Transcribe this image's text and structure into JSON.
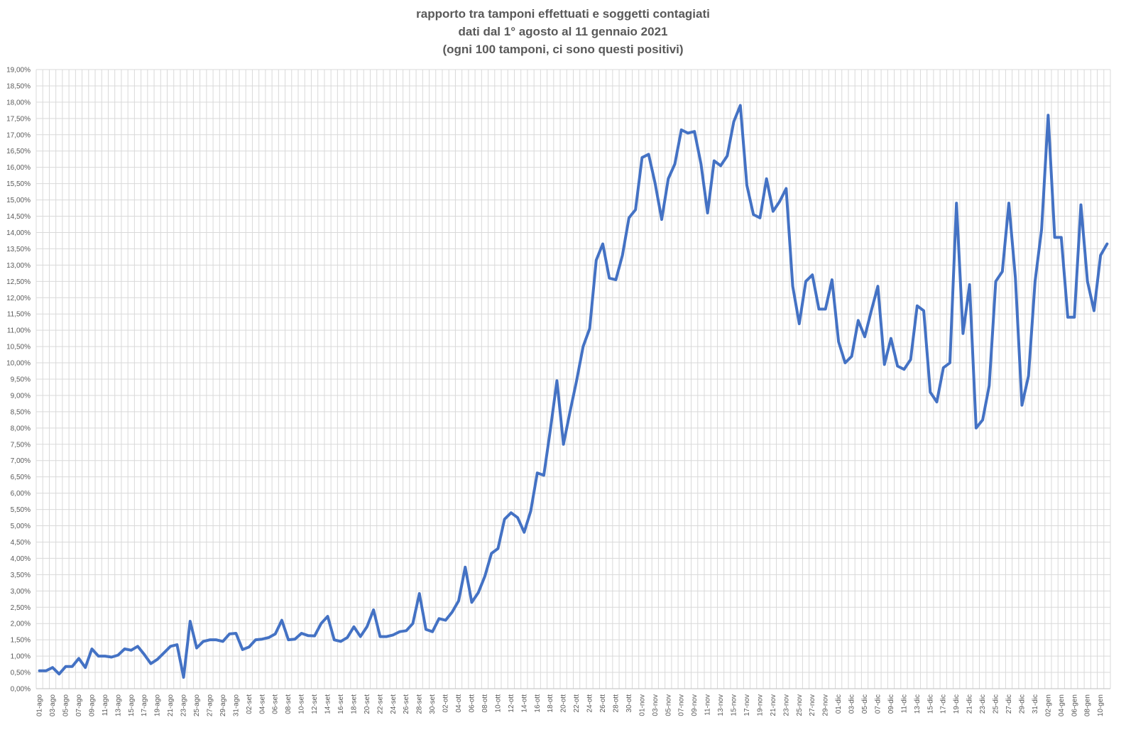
{
  "chart_data": {
    "type": "line",
    "title": [
      "rapporto tra tamponi effettuati e soggetti contagiati",
      "dati dal 1° agosto al 11 gennaio 2021",
      "(ogni 100 tamponi, ci sono questi positivi)"
    ],
    "xlabel": "",
    "ylabel": "",
    "ylim": [
      0,
      19
    ],
    "ytick_step": 0.5,
    "grid": true,
    "colors": {
      "line": "#4472C4",
      "grid": "#d9d9d9",
      "text": "#595959"
    },
    "categories": [
      "01-ago",
      "02-ago",
      "03-ago",
      "04-ago",
      "05-ago",
      "06-ago",
      "07-ago",
      "08-ago",
      "09-ago",
      "10-ago",
      "11-ago",
      "12-ago",
      "13-ago",
      "14-ago",
      "15-ago",
      "16-ago",
      "17-ago",
      "18-ago",
      "19-ago",
      "20-ago",
      "21-ago",
      "22-ago",
      "23-ago",
      "24-ago",
      "25-ago",
      "26-ago",
      "27-ago",
      "28-ago",
      "29-ago",
      "30-ago",
      "31-ago",
      "01-set",
      "02-set",
      "03-set",
      "04-set",
      "05-set",
      "06-set",
      "07-set",
      "08-set",
      "09-set",
      "10-set",
      "11-set",
      "12-set",
      "13-set",
      "14-set",
      "15-set",
      "16-set",
      "17-set",
      "18-set",
      "19-set",
      "20-set",
      "21-set",
      "22-set",
      "23-set",
      "24-set",
      "25-set",
      "26-set",
      "27-set",
      "28-set",
      "29-set",
      "30-set",
      "01-ott",
      "02-ott",
      "03-ott",
      "04-ott",
      "05-ott",
      "06-ott",
      "07-ott",
      "08-ott",
      "09-ott",
      "10-ott",
      "11-ott",
      "12-ott",
      "13-ott",
      "14-ott",
      "15-ott",
      "16-ott",
      "17-ott",
      "18-ott",
      "19-ott",
      "20-ott",
      "21-ott",
      "22-ott",
      "23-ott",
      "24-ott",
      "25-ott",
      "26-ott",
      "27-ott",
      "28-ott",
      "29-ott",
      "30-ott",
      "31-ott",
      "01-nov",
      "02-nov",
      "03-nov",
      "04-nov",
      "05-nov",
      "06-nov",
      "07-nov",
      "08-nov",
      "09-nov",
      "10-nov",
      "11-nov",
      "12-nov",
      "13-nov",
      "14-nov",
      "15-nov",
      "16-nov",
      "17-nov",
      "18-nov",
      "19-nov",
      "20-nov",
      "21-nov",
      "22-nov",
      "23-nov",
      "24-nov",
      "25-nov",
      "26-nov",
      "27-nov",
      "28-nov",
      "29-nov",
      "30-nov",
      "01-dic",
      "02-dic",
      "03-dic",
      "04-dic",
      "05-dic",
      "06-dic",
      "07-dic",
      "08-dic",
      "09-dic",
      "10-dic",
      "11-dic",
      "12-dic",
      "13-dic",
      "14-dic",
      "15-dic",
      "16-dic",
      "17-dic",
      "18-dic",
      "19-dic",
      "20-dic",
      "21-dic",
      "22-dic",
      "23-dic",
      "24-dic",
      "25-dic",
      "26-dic",
      "27-dic",
      "28-dic",
      "29-dic",
      "30-dic",
      "31-dic",
      "01-gen",
      "02-gen",
      "03-gen",
      "04-gen",
      "05-gen",
      "06-gen",
      "07-gen",
      "08-gen",
      "09-gen",
      "10-gen",
      "11-gen"
    ],
    "tick_labels": [
      "01-ago",
      "03-ago",
      "05-ago",
      "07-ago",
      "09-ago",
      "11-ago",
      "13-ago",
      "15-ago",
      "17-ago",
      "19-ago",
      "21-ago",
      "23-ago",
      "25-ago",
      "27-ago",
      "29-ago",
      "31-ago",
      "02-set",
      "04-set",
      "06-set",
      "08-set",
      "10-set",
      "12-set",
      "14-set",
      "16-set",
      "18-set",
      "20-set",
      "22-set",
      "24-set",
      "26-set",
      "28-set",
      "30-set",
      "02-ott",
      "04-ott",
      "06-ott",
      "08-ott",
      "10-ott",
      "12-ott",
      "14-ott",
      "16-ott",
      "18-ott",
      "20-ott",
      "22-ott",
      "24-ott",
      "26-ott",
      "28-ott",
      "30-ott",
      "01-nov",
      "03-nov",
      "05-nov",
      "07-nov",
      "09-nov",
      "11-nov",
      "13-nov",
      "15-nov",
      "17-nov",
      "19-nov",
      "21-nov",
      "23-nov",
      "25-nov",
      "27-nov",
      "29-nov",
      "01-dic",
      "03-dic",
      "05-dic",
      "07-dic",
      "09-dic",
      "11-dic",
      "13-dic",
      "15-dic",
      "17-dic",
      "19-dic",
      "21-dic",
      "23-dic",
      "25-dic",
      "27-dic",
      "29-dic",
      "31-dic",
      "02-gen",
      "04-gen",
      "06-gen",
      "08-gen",
      "10-gen"
    ],
    "series": [
      {
        "values": [
          0.55,
          0.55,
          0.65,
          0.45,
          0.68,
          0.68,
          0.93,
          0.65,
          1.22,
          1.0,
          1.0,
          0.97,
          1.03,
          1.22,
          1.18,
          1.3,
          1.05,
          0.77,
          0.9,
          1.1,
          1.3,
          1.35,
          0.35,
          2.07,
          1.25,
          1.45,
          1.5,
          1.5,
          1.45,
          1.68,
          1.7,
          1.2,
          1.28,
          1.5,
          1.52,
          1.57,
          1.68,
          2.1,
          1.5,
          1.52,
          1.7,
          1.63,
          1.62,
          2.0,
          2.22,
          1.5,
          1.45,
          1.57,
          1.9,
          1.6,
          1.9,
          2.42,
          1.6,
          1.6,
          1.65,
          1.75,
          1.78,
          2.0,
          2.92,
          1.82,
          1.75,
          2.15,
          2.1,
          2.35,
          2.7,
          3.73,
          2.65,
          2.95,
          3.45,
          4.15,
          4.3,
          5.2,
          5.4,
          5.25,
          4.8,
          5.45,
          6.62,
          6.55,
          7.95,
          9.45,
          7.5,
          8.5,
          9.45,
          10.5,
          11.05,
          13.15,
          13.65,
          12.6,
          12.55,
          13.3,
          14.45,
          14.7,
          16.3,
          16.4,
          15.5,
          14.4,
          15.65,
          16.1,
          17.15,
          17.05,
          17.1,
          16.1,
          14.6,
          16.2,
          16.05,
          16.35,
          17.4,
          17.9,
          15.45,
          14.55,
          14.45,
          15.65,
          14.65,
          14.95,
          15.35,
          12.35,
          11.2,
          12.5,
          12.7,
          11.65,
          11.65,
          12.55,
          10.65,
          10.0,
          10.2,
          11.3,
          10.8,
          11.6,
          12.35,
          9.95,
          10.75,
          9.9,
          9.8,
          10.1,
          11.75,
          11.6,
          9.1,
          8.8,
          9.85,
          10.0,
          14.9,
          10.9,
          12.4,
          8.0,
          8.25,
          9.3,
          12.5,
          12.8,
          14.9,
          12.6,
          8.7,
          9.6,
          12.5,
          14.1,
          17.6,
          13.85,
          13.85,
          11.4,
          11.4,
          14.85,
          12.5,
          11.6,
          13.3,
          13.65
        ]
      }
    ]
  }
}
